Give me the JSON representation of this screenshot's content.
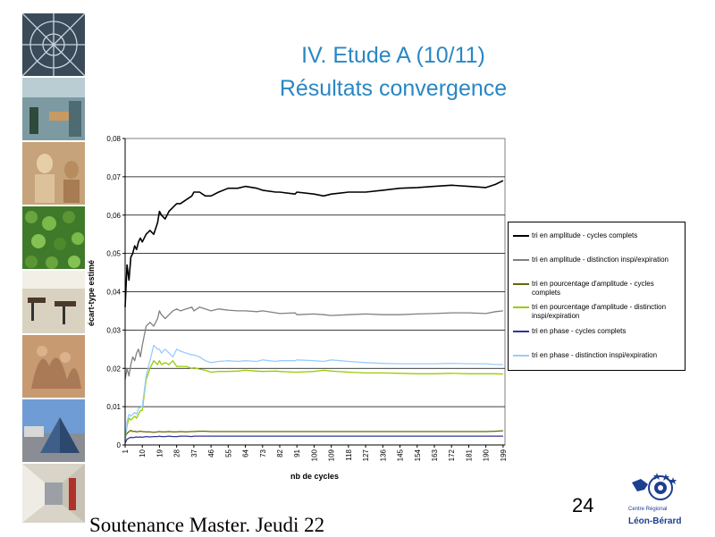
{
  "slide": {
    "title_line1": "IV. Etude A (10/11)",
    "title_line2": "Résultats convergence",
    "footer": "Soutenance Master. Jeudi 22",
    "page_number": "24",
    "logo_line1": "Centre Régional",
    "logo_line2": "Léon-Bérard",
    "title_color": "#2a87c3"
  },
  "chart_data": {
    "type": "line",
    "title": "",
    "xlabel": "nb de cycles",
    "ylabel": "écart-type estimé",
    "xlim": [
      1,
      200
    ],
    "ylim": [
      0,
      0.08
    ],
    "grid": "horizontal",
    "legend_position": "right",
    "x_ticks": [
      1,
      10,
      19,
      28,
      37,
      46,
      55,
      64,
      73,
      82,
      91,
      100,
      109,
      118,
      127,
      136,
      145,
      154,
      163,
      172,
      181,
      190,
      199
    ],
    "y_ticks": [
      "0",
      "0,01",
      "0,02",
      "0,03",
      "0,04",
      "0,05",
      "0,06",
      "0,07",
      "0,08"
    ],
    "y_tick_values": [
      0,
      0.01,
      0.02,
      0.03,
      0.04,
      0.05,
      0.06,
      0.07,
      0.08
    ],
    "x": [
      1,
      2,
      3,
      4,
      5,
      6,
      7,
      8,
      9,
      10,
      12,
      14,
      16,
      18,
      19,
      20,
      22,
      24,
      26,
      28,
      30,
      33,
      36,
      37,
      40,
      43,
      46,
      50,
      55,
      60,
      64,
      70,
      73,
      80,
      82,
      90,
      91,
      100,
      105,
      109,
      118,
      127,
      136,
      145,
      154,
      163,
      172,
      181,
      190,
      195,
      199
    ],
    "series": [
      {
        "name": "tri en amplitude - cycles complets",
        "color": "#000000",
        "values": [
          0.036,
          0.047,
          0.043,
          0.049,
          0.05,
          0.052,
          0.051,
          0.053,
          0.054,
          0.053,
          0.055,
          0.056,
          0.055,
          0.058,
          0.061,
          0.06,
          0.059,
          0.061,
          0.062,
          0.063,
          0.063,
          0.064,
          0.065,
          0.066,
          0.066,
          0.065,
          0.065,
          0.066,
          0.067,
          0.067,
          0.0675,
          0.067,
          0.0665,
          0.066,
          0.066,
          0.0655,
          0.066,
          0.0655,
          0.065,
          0.0655,
          0.066,
          0.066,
          0.0665,
          0.067,
          0.0672,
          0.0675,
          0.0678,
          0.0675,
          0.0672,
          0.068,
          0.069
        ]
      },
      {
        "name": "tri en amplitude - distinction inspi/expiration",
        "color": "#808080",
        "values": [
          0.017,
          0.02,
          0.018,
          0.021,
          0.023,
          0.022,
          0.024,
          0.025,
          0.023,
          0.026,
          0.031,
          0.032,
          0.031,
          0.033,
          0.035,
          0.034,
          0.033,
          0.034,
          0.035,
          0.0355,
          0.035,
          0.0355,
          0.036,
          0.035,
          0.036,
          0.0355,
          0.035,
          0.0355,
          0.0352,
          0.035,
          0.035,
          0.0348,
          0.035,
          0.0345,
          0.0343,
          0.0345,
          0.034,
          0.0342,
          0.034,
          0.0338,
          0.034,
          0.0342,
          0.034,
          0.034,
          0.0342,
          0.0343,
          0.0345,
          0.0345,
          0.0343,
          0.0348,
          0.035
        ]
      },
      {
        "name": "tri en pourcentage d'amplitude - cycles complets",
        "color": "#666600",
        "values": [
          0.002,
          0.003,
          0.0035,
          0.0038,
          0.0035,
          0.0036,
          0.0034,
          0.0035,
          0.0036,
          0.0035,
          0.0034,
          0.0034,
          0.0033,
          0.0034,
          0.0035,
          0.0034,
          0.0034,
          0.0035,
          0.0034,
          0.0034,
          0.0035,
          0.0034,
          0.0035,
          0.0035,
          0.0036,
          0.0036,
          0.0035,
          0.0035,
          0.0035,
          0.0035,
          0.0035,
          0.0035,
          0.0035,
          0.0035,
          0.0035,
          0.0035,
          0.0035,
          0.0035,
          0.0035,
          0.0035,
          0.0035,
          0.0035,
          0.0035,
          0.0035,
          0.0035,
          0.0035,
          0.0035,
          0.0035,
          0.0035,
          0.0036,
          0.0037
        ]
      },
      {
        "name": "tri en pourcentage d'amplitude - distinction inspi/expiration",
        "color": "#99cc00",
        "values": [
          0.001,
          0.005,
          0.007,
          0.0065,
          0.007,
          0.0075,
          0.007,
          0.008,
          0.009,
          0.009,
          0.017,
          0.02,
          0.022,
          0.021,
          0.022,
          0.021,
          0.0215,
          0.021,
          0.022,
          0.0205,
          0.0205,
          0.0205,
          0.02,
          0.0202,
          0.0198,
          0.0195,
          0.019,
          0.0192,
          0.0192,
          0.0193,
          0.0195,
          0.0193,
          0.0192,
          0.0193,
          0.0192,
          0.019,
          0.019,
          0.0192,
          0.0195,
          0.0193,
          0.019,
          0.0188,
          0.0188,
          0.0187,
          0.0186,
          0.0186,
          0.0187,
          0.0186,
          0.0186,
          0.0186,
          0.0185
        ]
      },
      {
        "name": "tri en phase - cycles complets",
        "color": "#333399",
        "values": [
          0.0005,
          0.0015,
          0.0018,
          0.002,
          0.0019,
          0.002,
          0.0021,
          0.002,
          0.0021,
          0.002,
          0.0022,
          0.0021,
          0.0022,
          0.0022,
          0.0023,
          0.0022,
          0.0022,
          0.0023,
          0.0022,
          0.0022,
          0.0023,
          0.0023,
          0.0022,
          0.0023,
          0.0023,
          0.0023,
          0.0023,
          0.0023,
          0.0023,
          0.0023,
          0.0023,
          0.0023,
          0.0023,
          0.0023,
          0.0023,
          0.0023,
          0.0023,
          0.0023,
          0.0023,
          0.0023,
          0.0023,
          0.0023,
          0.0023,
          0.0023,
          0.0023,
          0.0023,
          0.0023,
          0.0023,
          0.0023,
          0.0023,
          0.0023
        ]
      },
      {
        "name": "tri en phase - distinction inspi/expiration",
        "color": "#99ccff",
        "values": [
          0.001,
          0.006,
          0.008,
          0.0075,
          0.008,
          0.0085,
          0.008,
          0.0095,
          0.0098,
          0.01,
          0.018,
          0.022,
          0.026,
          0.025,
          0.025,
          0.024,
          0.025,
          0.024,
          0.023,
          0.025,
          0.0245,
          0.024,
          0.0235,
          0.0235,
          0.023,
          0.022,
          0.0215,
          0.0218,
          0.022,
          0.0218,
          0.022,
          0.0218,
          0.0222,
          0.0218,
          0.022,
          0.022,
          0.0222,
          0.022,
          0.0218,
          0.0222,
          0.0218,
          0.0215,
          0.0213,
          0.0212,
          0.0212,
          0.0212,
          0.0213,
          0.0212,
          0.0212,
          0.021,
          0.021
        ]
      }
    ]
  }
}
